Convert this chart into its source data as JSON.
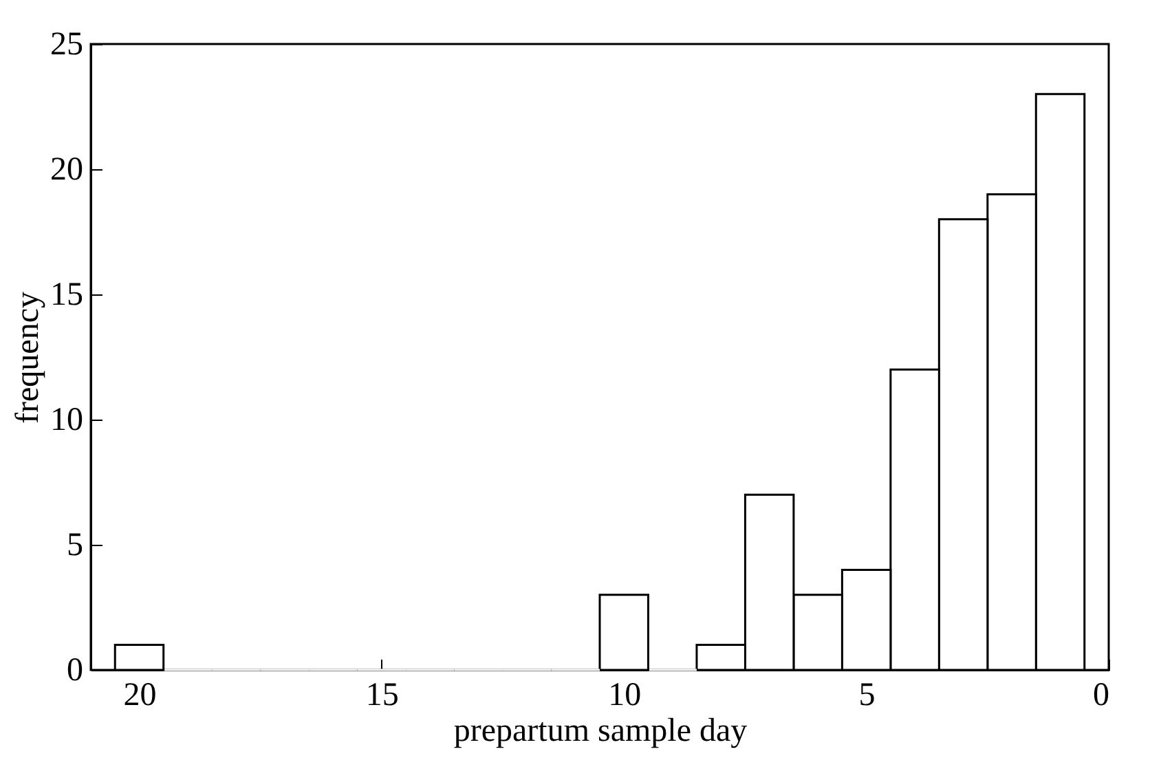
{
  "chart_data": {
    "type": "histogram",
    "xlabel": "prepartum sample day",
    "ylabel": "frequency",
    "bins": [
      0.5,
      1.5,
      2.5,
      3.5,
      4.5,
      5.5,
      6.5,
      7.5,
      8.5,
      9.5,
      10.5,
      11.5,
      12.5,
      13.5,
      14.5,
      15.5,
      16.5,
      17.5,
      18.5,
      19.5,
      20.5
    ],
    "values": [
      23,
      19,
      18,
      12,
      4,
      3,
      7,
      1,
      0,
      3,
      0,
      0,
      0,
      0,
      0,
      0,
      0,
      0,
      0,
      1
    ],
    "color": "#ffffff",
    "xlim": [
      21,
      0
    ],
    "xticks": [
      20,
      15,
      10,
      5,
      0
    ],
    "ylim": [
      0,
      25
    ],
    "yticks": [
      0,
      5,
      10,
      15,
      20,
      25
    ],
    "grid": false
  }
}
